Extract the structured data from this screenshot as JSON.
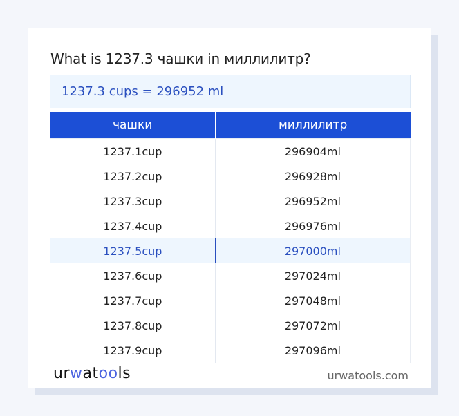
{
  "title": "What is 1237.3 чашки in миллилитр?",
  "result": "1237.3 cups = 296952 ml",
  "table": {
    "headers": [
      "чашки",
      "миллилитр"
    ],
    "highlight_row": 4,
    "rows": [
      [
        "1237.1cup",
        "296904ml"
      ],
      [
        "1237.2cup",
        "296928ml"
      ],
      [
        "1237.3cup",
        "296952ml"
      ],
      [
        "1237.4cup",
        "296976ml"
      ],
      [
        "1237.5cup",
        "297000ml"
      ],
      [
        "1237.6cup",
        "297024ml"
      ],
      [
        "1237.7cup",
        "297048ml"
      ],
      [
        "1237.8cup",
        "297072ml"
      ],
      [
        "1237.9cup",
        "297096ml"
      ]
    ]
  },
  "footer": {
    "logo": "urwatools",
    "site": "urwatools.com"
  },
  "colors": {
    "accent": "#1c4fd6",
    "highlight_text": "#2a4fbf",
    "highlight_bg": "#eef6fe"
  }
}
